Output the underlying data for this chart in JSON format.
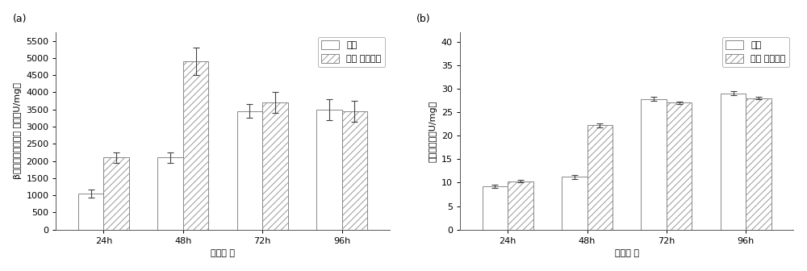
{
  "panel_a": {
    "title": "(a)",
    "xlabel": "诱导时 间",
    "ylabel": "β－葡萄糖苷糖苷比 酶活（U/mg）",
    "categories": [
      "24h",
      "48h",
      "72h",
      "96h"
    ],
    "control_values": [
      1050,
      2100,
      3450,
      3500
    ],
    "control_errors": [
      120,
      150,
      200,
      300
    ],
    "overexpress_values": [
      2100,
      4900,
      3700,
      3450
    ],
    "overexpress_errors": [
      150,
      400,
      300,
      300
    ],
    "ylim": [
      0,
      5750
    ],
    "yticks": [
      0,
      500,
      1000,
      1500,
      2000,
      2500,
      3000,
      3500,
      4000,
      4500,
      5000,
      5500
    ],
    "legend_labels": [
      "对照",
      "过表 达增强型"
    ]
  },
  "panel_b": {
    "title": "(b)",
    "xlabel": "诱导时 间",
    "ylabel": "木聚糖酶活（U/mg）",
    "categories": [
      "24h",
      "48h",
      "72h",
      "96h"
    ],
    "control_values": [
      9.2,
      11.2,
      27.8,
      29.0
    ],
    "control_errors": [
      0.3,
      0.5,
      0.4,
      0.4
    ],
    "overexpress_values": [
      10.3,
      22.2,
      27.0,
      28.0
    ],
    "overexpress_errors": [
      0.3,
      0.4,
      0.3,
      0.3
    ],
    "ylim": [
      0,
      42
    ],
    "yticks": [
      0,
      5,
      10,
      15,
      20,
      25,
      30,
      35,
      40
    ],
    "legend_labels": [
      "对照",
      "过表 达增强型"
    ]
  },
  "bar_width": 0.32,
  "control_color": "#ffffff",
  "control_edgecolor": "#888888",
  "overexpress_facecolor": "#ffffff",
  "overexpress_edgecolor": "#888888",
  "hatch_pattern": "////",
  "hatch_color": "#bbbbbb",
  "error_capsize": 3,
  "error_color": "#444444",
  "error_linewidth": 0.8,
  "font_size_label": 8,
  "font_size_tick": 8,
  "font_size_legend": 8,
  "font_size_title": 9,
  "background_color": "#ffffff"
}
